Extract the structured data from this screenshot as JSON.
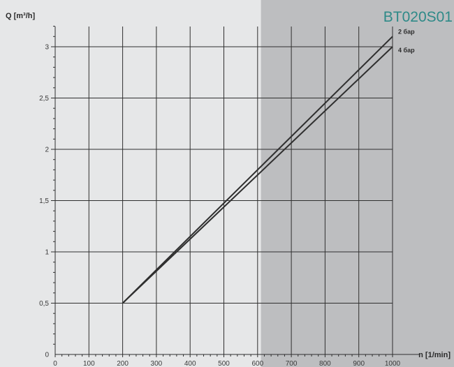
{
  "model": "BT020S01",
  "colors": {
    "background": "#e6e7e8",
    "shaded_region": "#bdbec0",
    "grid": "#2f2f2f",
    "line": "#2f2f2f",
    "title": "#2e8a88"
  },
  "chart_data": {
    "type": "line",
    "title": "BT020S01",
    "xlabel": "n [1/min]",
    "ylabel": "Q [m³/h]",
    "xlim": [
      0,
      1000
    ],
    "ylim": [
      0,
      3.3
    ],
    "x_ticks": [
      0,
      100,
      200,
      300,
      400,
      500,
      600,
      700,
      800,
      900,
      1000
    ],
    "y_ticks": [
      0,
      0.5,
      1,
      1.5,
      2,
      2.5,
      3
    ],
    "y_tick_labels": [
      "0",
      "0,5",
      "1",
      "1,5",
      "2",
      "2,5",
      "3"
    ],
    "grid": true,
    "shaded_x_from": 610,
    "series": [
      {
        "name": "2 бар",
        "x": [
          200,
          1000
        ],
        "y": [
          0.5,
          3.1
        ]
      },
      {
        "name": "4 бар",
        "x": [
          200,
          1000
        ],
        "y": [
          0.5,
          3.0
        ]
      }
    ]
  }
}
